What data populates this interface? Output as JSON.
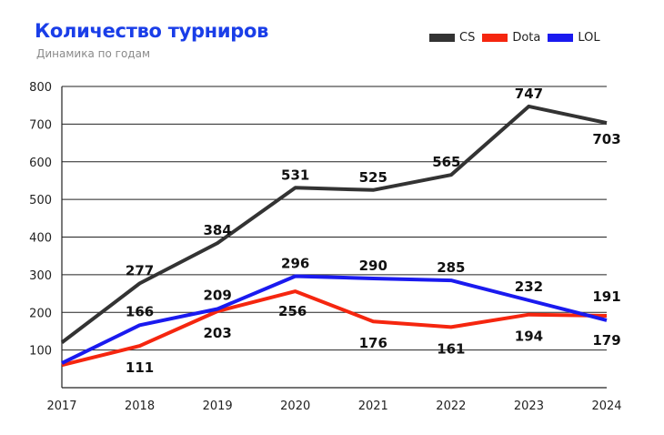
{
  "chart_data": {
    "type": "line",
    "title": "Количество турниров",
    "subtitle": "Динамика по годам",
    "x": [
      "2017",
      "2018",
      "2019",
      "2020",
      "2021",
      "2022",
      "2023",
      "2024"
    ],
    "ylim": [
      0,
      800
    ],
    "yticks": [
      100,
      200,
      300,
      400,
      500,
      600,
      700,
      800
    ],
    "grid": true,
    "legend_position": "top-right",
    "series": [
      {
        "name": "CS",
        "color": "#333333",
        "values": [
          120,
          277,
          384,
          531,
          525,
          565,
          747,
          703
        ],
        "labels": [
          "",
          "277",
          "384",
          "531",
          "525",
          "565",
          "747",
          "703"
        ]
      },
      {
        "name": "Dota",
        "color": "#f5260f",
        "values": [
          60,
          111,
          203,
          256,
          176,
          161,
          194,
          191
        ],
        "labels": [
          "",
          "111",
          "203",
          "256",
          "176",
          "161",
          "194",
          "191"
        ]
      },
      {
        "name": "LOL",
        "color": "#1a1aef",
        "values": [
          65,
          166,
          209,
          296,
          290,
          285,
          232,
          179
        ],
        "labels": [
          "",
          "166",
          "209",
          "296",
          "290",
          "285",
          "232",
          "179"
        ]
      }
    ]
  }
}
